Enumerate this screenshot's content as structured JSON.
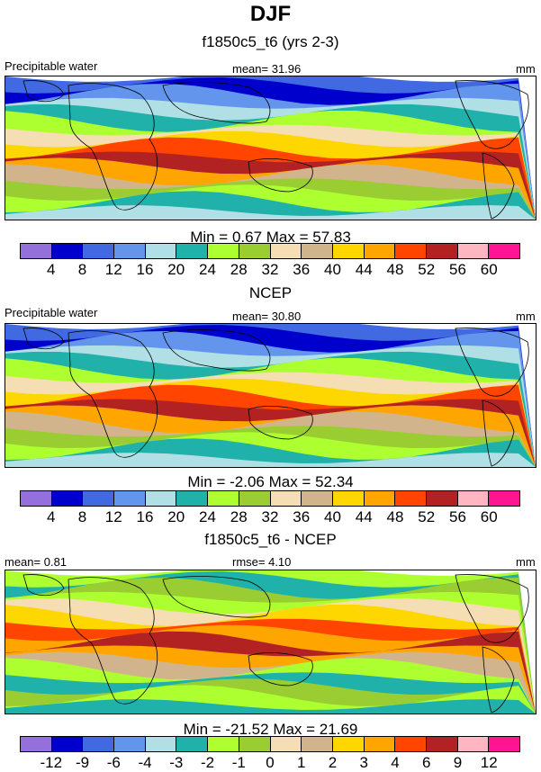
{
  "header": {
    "season": "DJF"
  },
  "chart_data": [
    {
      "type": "heatmap",
      "title": "f1850c5_t6 (yrs 2-3)",
      "variable": "Precipitable water",
      "mean_text": "mean=  31.96",
      "units": "mm",
      "minmax_text": "Min =   0.67 Max =  57.83",
      "min": 0.67,
      "max": 57.83,
      "mean": 31.96,
      "levels": [
        "4",
        "8",
        "12",
        "16",
        "20",
        "24",
        "28",
        "32",
        "36",
        "40",
        "44",
        "48",
        "52",
        "56",
        "60"
      ],
      "palette": [
        "#9370db",
        "#0000cd",
        "#4169e1",
        "#6495ed",
        "#b0e0e6",
        "#20b2aa",
        "#adff2f",
        "#9acd32",
        "#f5deb3",
        "#d2b48c",
        "#ffd700",
        "#ffa500",
        "#ff4500",
        "#b22222",
        "#ffb6c1",
        "#ff1493"
      ]
    },
    {
      "type": "heatmap",
      "title": "NCEP",
      "variable": "Precipitable water",
      "mean_text": "mean=  30.80",
      "units": "mm",
      "minmax_text": "Min =  -2.06 Max =  52.34",
      "min": -2.06,
      "max": 52.34,
      "mean": 30.8,
      "levels": [
        "4",
        "8",
        "12",
        "16",
        "20",
        "24",
        "28",
        "32",
        "36",
        "40",
        "44",
        "48",
        "52",
        "56",
        "60"
      ],
      "palette": [
        "#9370db",
        "#0000cd",
        "#4169e1",
        "#6495ed",
        "#b0e0e6",
        "#20b2aa",
        "#adff2f",
        "#9acd32",
        "#f5deb3",
        "#d2b48c",
        "#ffd700",
        "#ffa500",
        "#ff4500",
        "#b22222",
        "#ffb6c1",
        "#ff1493"
      ]
    },
    {
      "type": "heatmap",
      "title": "f1850c5_t6 - NCEP",
      "variable": "",
      "mean_text": "mean=   0.81",
      "rmse_text": "rmse=   4.10",
      "units": "mm",
      "minmax_text": "Min = -21.52 Max =  21.69",
      "min": -21.52,
      "max": 21.69,
      "mean": 0.81,
      "rmse": 4.1,
      "levels": [
        "-12",
        "-9",
        "-6",
        "-4",
        "-3",
        "-2",
        "-1",
        "0",
        "1",
        "2",
        "3",
        "4",
        "6",
        "9",
        "12"
      ],
      "palette": [
        "#9370db",
        "#0000cd",
        "#4169e1",
        "#6495ed",
        "#b0e0e6",
        "#20b2aa",
        "#adff2f",
        "#9acd32",
        "#f5deb3",
        "#d2b48c",
        "#ffd700",
        "#ffa500",
        "#ff4500",
        "#b22222",
        "#ffb6c1",
        "#ff1493"
      ]
    }
  ]
}
